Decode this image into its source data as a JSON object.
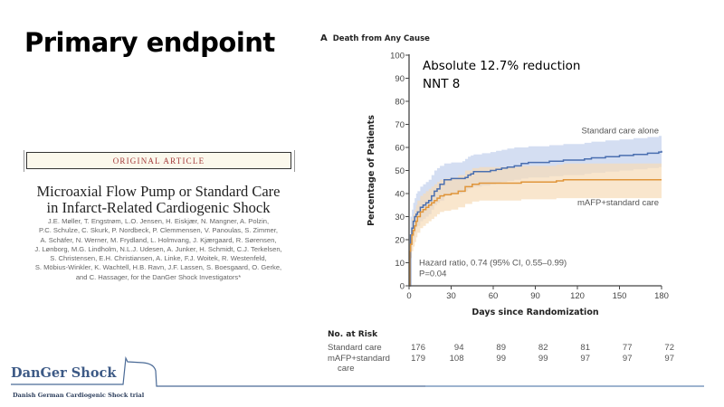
{
  "slide": {
    "title": "Primary endpoint"
  },
  "article": {
    "banner": "ORIGINAL ARTICLE",
    "title_lines": [
      "Microaxial Flow Pump or Standard Care",
      "in Infarct-Related Cardiogenic Shock"
    ],
    "author_lines": [
      "J.E. Møller, T. Engstrøm, L.O. Jensen, H. Eiskjær, N. Mangner, A. Polzin,",
      "P.C. Schulze, C. Skurk, P. Nordbeck, P. Clemmensen, V. Panoulas, S. Zimmer,",
      "A. Schäfer, N. Werner, M. Frydland, L. Holmvang, J. Kjærgaard, R. Sørensen,",
      "J. Lønborg, M.G. Lindholm, N.L.J. Udesen, A. Junker, H. Schmidt, C.J. Terkelsen,",
      "S. Christensen, E.H. Christiansen, A. Linke, F.J. Woitek, R. Westenfeld,",
      "S. Möbius-Winkler, K. Wachtell, H.B. Ravn, J.F. Lassen, S. Boesgaard, O. Gerke,",
      "and C. Hassager, for the DanGer Shock Investigators*"
    ]
  },
  "annotation": {
    "line1": "Absolute 12.7% reduction",
    "line2": "NNT 8"
  },
  "chart_data": {
    "type": "line",
    "panel": "A",
    "title": "Death from Any Cause",
    "xlabel": "Days since Randomization",
    "ylabel": "Percentage of Patients",
    "xlim": [
      0,
      180
    ],
    "ylim": [
      0,
      100
    ],
    "xticks": [
      0,
      30,
      60,
      90,
      120,
      150,
      180
    ],
    "yticks": [
      0,
      10,
      20,
      30,
      40,
      50,
      60,
      70,
      80,
      90,
      100
    ],
    "grid": false,
    "series": [
      {
        "name": "Standard care alone",
        "color": "#4a6fb0",
        "band_color": "#c5d3ee",
        "x": [
          0,
          1,
          2,
          3,
          4,
          5,
          6,
          8,
          10,
          12,
          14,
          16,
          18,
          20,
          22,
          25,
          30,
          38,
          40,
          42,
          44,
          46,
          52,
          58,
          62,
          66,
          70,
          75,
          80,
          85,
          90,
          100,
          110,
          120,
          125,
          130,
          140,
          150,
          160,
          170,
          176,
          178,
          180
        ],
        "y": [
          0,
          22,
          25,
          28,
          30,
          31,
          32,
          34,
          35,
          36,
          37,
          39,
          41,
          42,
          44,
          46,
          46.5,
          46.5,
          47,
          48,
          48.5,
          49.5,
          49.5,
          50,
          50.5,
          51,
          51.5,
          52,
          53,
          53.5,
          53.5,
          54,
          54.5,
          54.5,
          55,
          55.5,
          56,
          56.5,
          57,
          57.5,
          57.5,
          58,
          58.5
        ],
        "ci_lower": [
          0,
          15,
          18,
          21,
          23,
          25,
          26,
          28,
          29,
          30,
          31,
          33,
          35,
          36,
          37,
          39,
          40,
          40.5,
          41,
          42,
          42.5,
          43,
          43.5,
          44,
          44.5,
          45,
          45.5,
          46,
          46.5,
          47,
          47,
          47.5,
          48,
          48,
          48.5,
          49,
          49.5,
          50,
          50.5,
          51,
          51,
          51.5,
          52
        ],
        "ci_upper": [
          0,
          30,
          33,
          36,
          38,
          40,
          41,
          43,
          44,
          45,
          46,
          48,
          50,
          51,
          52,
          53,
          53.5,
          54,
          55,
          56,
          56.5,
          57,
          57.5,
          58,
          58.5,
          59,
          59.5,
          60,
          60,
          60.5,
          60.5,
          61,
          61.5,
          61.5,
          62,
          62.5,
          63,
          63.5,
          64,
          64.5,
          64.5,
          65,
          65.5
        ]
      },
      {
        "name": "mAFP+standard care",
        "color": "#e0953a",
        "band_color": "#f6dcb8",
        "x": [
          0,
          0.5,
          1,
          2,
          3,
          4,
          5,
          6,
          8,
          10,
          12,
          14,
          16,
          18,
          20,
          22,
          25,
          30,
          35,
          40,
          45,
          50,
          60,
          70,
          80,
          90,
          100,
          105,
          110,
          120,
          150,
          180
        ],
        "y": [
          0,
          15,
          18,
          22,
          24,
          26,
          28,
          30,
          32,
          33,
          34,
          35,
          36,
          37,
          38,
          39,
          39.5,
          40,
          41,
          43,
          44,
          44.5,
          44.5,
          44.5,
          45,
          45,
          45,
          45.5,
          46,
          46,
          46,
          46
        ],
        "ci_lower": [
          0,
          9,
          12,
          15,
          17,
          19,
          21,
          23,
          25,
          26,
          27,
          28,
          29,
          30,
          31,
          32,
          32.5,
          33,
          34,
          35.5,
          36.5,
          37,
          37,
          37,
          37.5,
          37.5,
          37.5,
          38,
          38,
          38,
          38,
          38
        ],
        "ci_upper": [
          0,
          21,
          24,
          29,
          31,
          33,
          35,
          37,
          39,
          40,
          41,
          42,
          43,
          44,
          45,
          46,
          46.5,
          47,
          48,
          50,
          51,
          51.5,
          51.5,
          51.5,
          52,
          52,
          52,
          52.5,
          53,
          53,
          53,
          53
        ]
      }
    ],
    "series_labels": [
      {
        "text": "Standard care alone",
        "x": 180,
        "y": 66,
        "anchor": "end"
      },
      {
        "text": "mAFP+standard care",
        "x": 180,
        "y": 35,
        "anchor": "end"
      }
    ],
    "annotations": [
      "Hazard ratio, 0.74 (95% CI, 0.55–0.99)",
      "P=0.04"
    ],
    "risk_table": {
      "title": "No. at Risk",
      "rows": [
        {
          "label": "Standard care",
          "values": [
            176,
            94,
            89,
            82,
            81,
            77,
            72
          ]
        },
        {
          "label": "mAFP+standard",
          "label_cont": "care",
          "values": [
            179,
            108,
            99,
            99,
            97,
            97,
            97
          ]
        }
      ]
    }
  },
  "logo": {
    "name": "DanGer Shock",
    "subtitle": "Danish German Cardiogenic  Shock trial",
    "line_color": "#4a6a96"
  }
}
